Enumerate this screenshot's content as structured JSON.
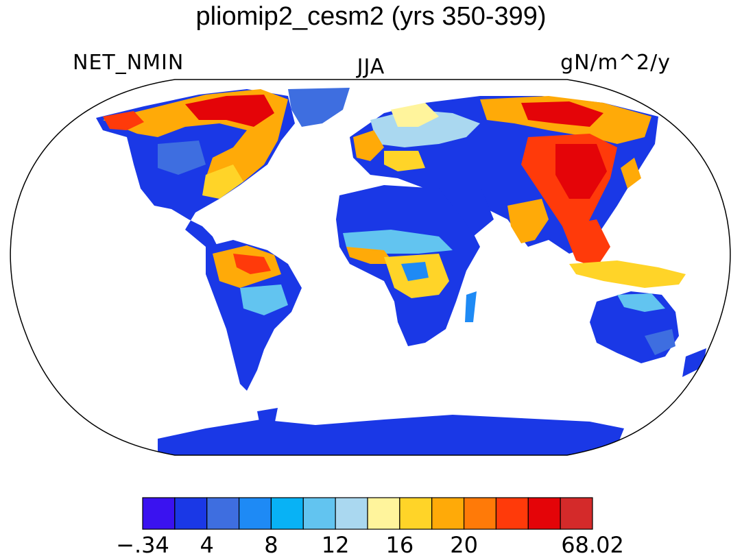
{
  "title": "pliomip2_cesm2 (yrs 350-399)",
  "left_label": "NET_NMIN",
  "center_label": "JJA",
  "right_label": "gN/m^2/y",
  "projection": "Robinson",
  "colorbar": {
    "colors": [
      "#3a12f0",
      "#1a38e6",
      "#3e6ee0",
      "#1e8af5",
      "#08b2f5",
      "#62c4f0",
      "#aad8f0",
      "#fff49c",
      "#ffd428",
      "#ffaa08",
      "#ff7a08",
      "#ff3a0a",
      "#e40408",
      "#d42a2a"
    ],
    "labels": [
      "-.34",
      "4",
      "8",
      "12",
      "16",
      "20",
      "68.02"
    ]
  }
}
